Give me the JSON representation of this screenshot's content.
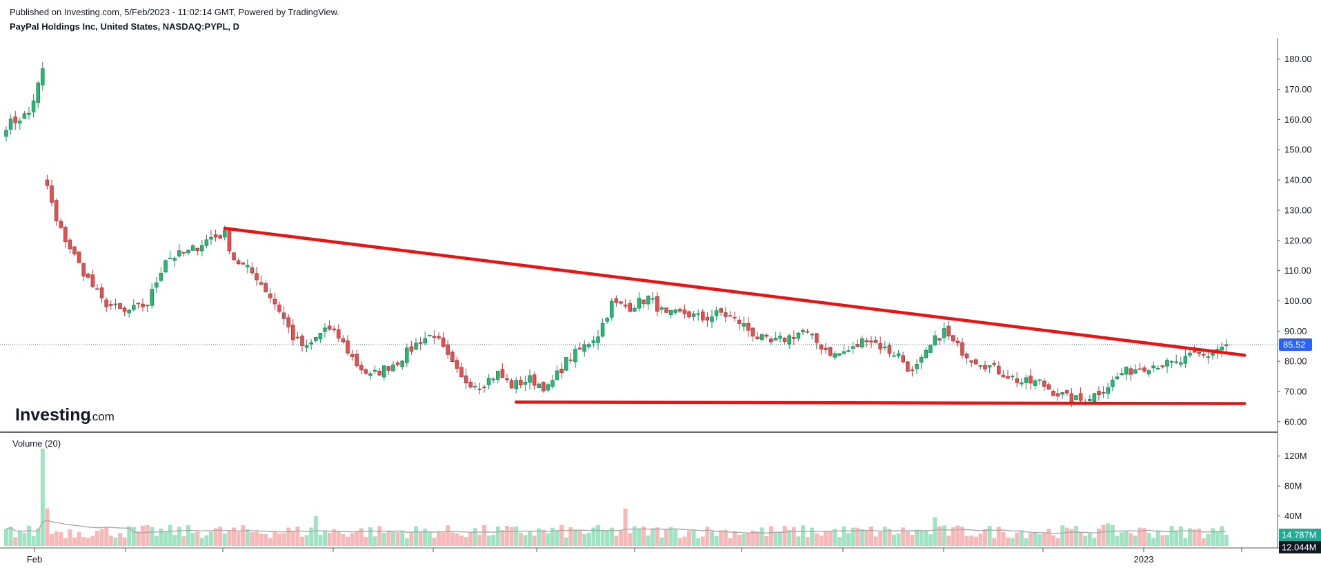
{
  "header": {
    "published": "Published on Investing.com, 5/Feb/2023 - 11:02:14 GMT, Powered by TradingView.",
    "symbol": "PayPal Holdings Inc, United States, NASDAQ:PYPL, D"
  },
  "logo": {
    "brand": "Investing",
    "suffix": ".com"
  },
  "volume_label": "Volume (20)",
  "colors": {
    "up": "#26a69a",
    "up_fill": "#2bb673",
    "down": "#e05252",
    "down_fill": "#f09595",
    "trendline": "#f01010",
    "last_price_tag": "#2962ff",
    "volume_tag_green": "#22ab94",
    "volume_tag_dark": "#131722",
    "volume_ma": "#a8a8a8"
  },
  "chart_data": [
    {
      "type": "candlestick",
      "symbol": "NASDAQ:PYPL",
      "interval": "D",
      "x_ticks": [
        "Feb",
        "2023"
      ],
      "y_ticks": [
        "60.00",
        "70.00",
        "80.00",
        "90.00",
        "100.00",
        "110.00",
        "120.00",
        "130.00",
        "140.00",
        "150.00",
        "160.00",
        "170.00",
        "180.00"
      ],
      "ylim": [
        57,
        187
      ],
      "last_price": "85.52",
      "last_price_value": 85.52,
      "anchors": [
        [
          0,
          158
        ],
        [
          5,
          162
        ],
        [
          8,
          176
        ],
        [
          9,
          138
        ],
        [
          11,
          126
        ],
        [
          16,
          112
        ],
        [
          21,
          100
        ],
        [
          26,
          96
        ],
        [
          31,
          99
        ],
        [
          35,
          114
        ],
        [
          40,
          116
        ],
        [
          45,
          121
        ],
        [
          48,
          122
        ],
        [
          50,
          114
        ],
        [
          55,
          108
        ],
        [
          60,
          97
        ],
        [
          63,
          88
        ],
        [
          66,
          84
        ],
        [
          70,
          91
        ],
        [
          73,
          88
        ],
        [
          77,
          79
        ],
        [
          80,
          75
        ],
        [
          86,
          80
        ],
        [
          91,
          87
        ],
        [
          94,
          89
        ],
        [
          97,
          81
        ],
        [
          100,
          74
        ],
        [
          104,
          72
        ],
        [
          108,
          76
        ],
        [
          111,
          72
        ],
        [
          115,
          74
        ],
        [
          119,
          71
        ],
        [
          123,
          80
        ],
        [
          127,
          85
        ],
        [
          130,
          89
        ],
        [
          133,
          99
        ],
        [
          137,
          98
        ],
        [
          141,
          101
        ],
        [
          145,
          95
        ],
        [
          149,
          96
        ],
        [
          153,
          94
        ],
        [
          157,
          96
        ],
        [
          161,
          93
        ],
        [
          165,
          88
        ],
        [
          168,
          86
        ],
        [
          172,
          88
        ],
        [
          175,
          90
        ],
        [
          179,
          85
        ],
        [
          182,
          82
        ],
        [
          186,
          84
        ],
        [
          189,
          88
        ],
        [
          193,
          84
        ],
        [
          196,
          82
        ],
        [
          199,
          76
        ],
        [
          201,
          80
        ],
        [
          204,
          87
        ],
        [
          206,
          90
        ],
        [
          208,
          86
        ],
        [
          212,
          81
        ],
        [
          215,
          79
        ],
        [
          219,
          76
        ],
        [
          223,
          73
        ],
        [
          227,
          73
        ],
        [
          230,
          70
        ],
        [
          233,
          68
        ],
        [
          236,
          67
        ],
        [
          239,
          69
        ],
        [
          242,
          72
        ],
        [
          245,
          76
        ],
        [
          249,
          78
        ],
        [
          253,
          79
        ],
        [
          257,
          79
        ],
        [
          261,
          82
        ],
        [
          264,
          82
        ],
        [
          266,
          84
        ],
        [
          268,
          85.5
        ]
      ],
      "trendlines": [
        {
          "name": "descending resistance",
          "from": [
            48,
            124
          ],
          "to": [
            272,
            82
          ]
        },
        {
          "name": "horizontal support",
          "from": [
            112,
            66.5
          ],
          "to": [
            272,
            66
          ]
        }
      ]
    },
    {
      "type": "bar",
      "title": "Volume (20)",
      "y_ticks": [
        "40M",
        "80M",
        "120M"
      ],
      "ylim": [
        0,
        140
      ],
      "spikes": [
        [
          8,
          130
        ],
        [
          9,
          50
        ],
        [
          68,
          40
        ],
        [
          136,
          50
        ],
        [
          204,
          38
        ],
        [
          242,
          30
        ]
      ],
      "typical_range": [
        10,
        28
      ],
      "ma_period": 20,
      "last_volume": "14.787M",
      "last_volume_ma": "12.044M"
    }
  ]
}
